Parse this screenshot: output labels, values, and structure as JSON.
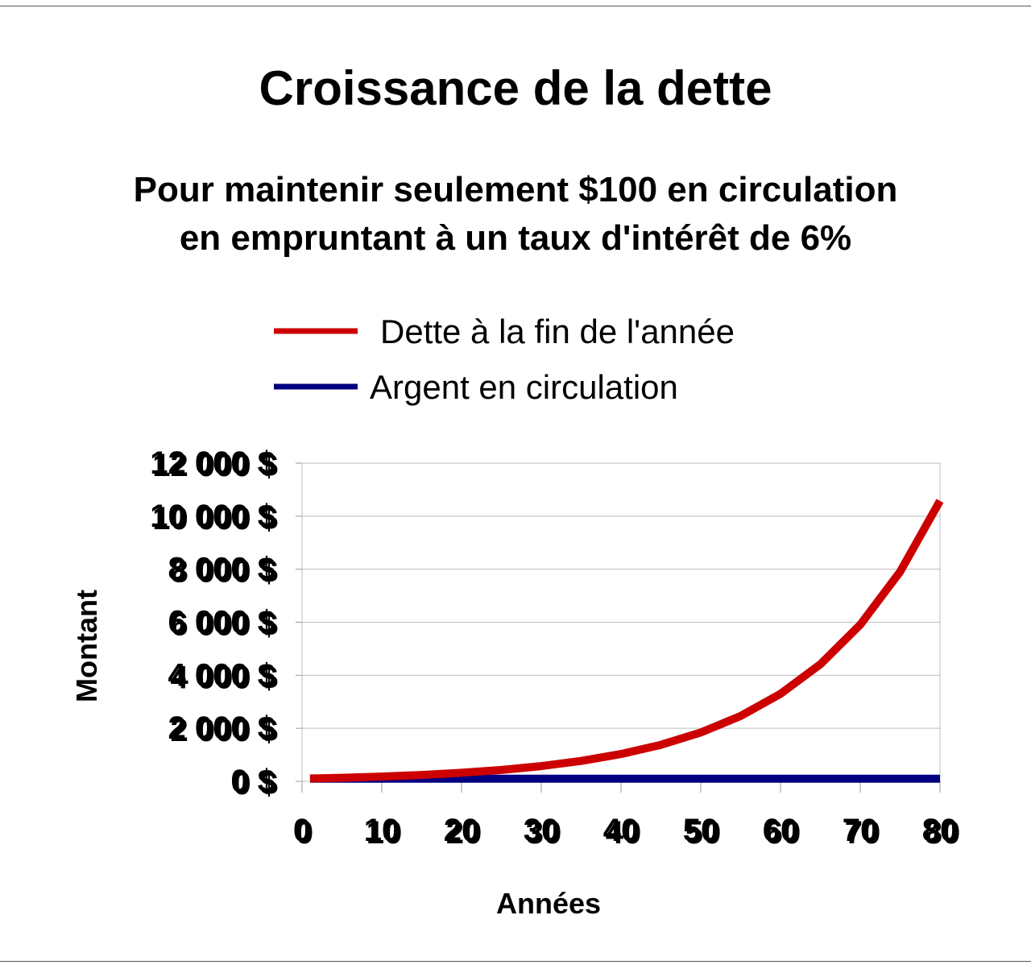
{
  "chart_data": {
    "type": "line",
    "title": "Croissance de la dette",
    "subtitle_lines": [
      "Pour maintenir seulement $100 en circulation",
      "en empruntant à un taux d'intérêt de 6%"
    ],
    "xlabel": "Années",
    "ylabel": "Montant",
    "xlim": [
      0,
      80
    ],
    "ylim": [
      0,
      12000
    ],
    "x_ticks": [
      "0",
      "10",
      "20",
      "30",
      "40",
      "50",
      "60",
      "70",
      "80"
    ],
    "y_ticks": [
      "0 $",
      "2 000 $",
      "4 000 $",
      "6 000 $",
      "8 000 $",
      "10 000 $",
      "12 000 $"
    ],
    "grid": true,
    "legend_position": "top-center",
    "x": [
      1,
      5,
      10,
      15,
      20,
      25,
      30,
      35,
      40,
      45,
      50,
      55,
      60,
      65,
      70,
      75,
      80
    ],
    "series": [
      {
        "name": "Dette à la fin de l'année",
        "color": "#cc0000",
        "values": [
          106,
          134,
          179,
          240,
          321,
          429,
          574,
          769,
          1029,
          1376,
          1842,
          2465,
          3299,
          4414,
          5907,
          7905,
          10579
        ]
      },
      {
        "name": "Argent en circulation",
        "color": "#000080",
        "values": [
          100,
          100,
          100,
          100,
          100,
          100,
          100,
          100,
          100,
          100,
          100,
          100,
          100,
          100,
          100,
          100,
          100
        ]
      }
    ]
  }
}
